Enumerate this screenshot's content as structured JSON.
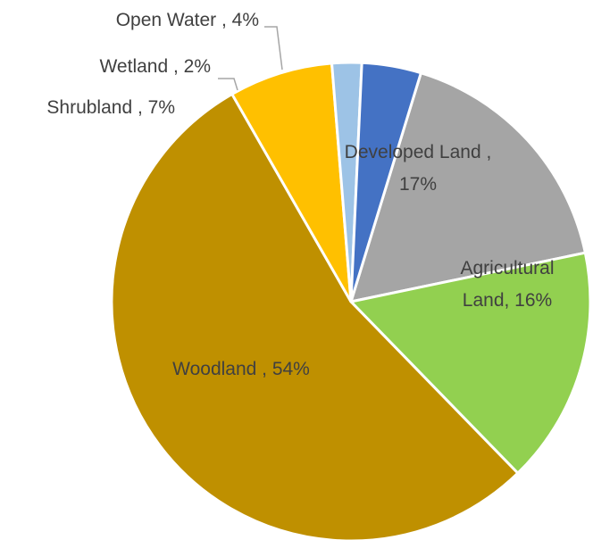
{
  "chart_data": {
    "type": "pie",
    "title": "",
    "slices": [
      {
        "label": "Developed Land",
        "value": 17,
        "pct_text": "17%",
        "color": "#a5a5a5"
      },
      {
        "label": "Agricultural Land",
        "value": 16,
        "pct_text": "16%",
        "color": "#92d050"
      },
      {
        "label": "Woodland",
        "value": 54,
        "pct_text": "54%",
        "color": "#bf9000"
      },
      {
        "label": "Shrubland",
        "value": 7,
        "pct_text": "7%",
        "color": "#ffc000"
      },
      {
        "label": "Wetland",
        "value": 2,
        "pct_text": "2%",
        "color": "#9dc3e6"
      },
      {
        "label": "Open Water",
        "value": 4,
        "pct_text": "4%",
        "color": "#4472c4"
      }
    ],
    "label_text": {
      "developed_l1": "Developed Land ,",
      "developed_l2": "17%",
      "agricultural_l1": "Agricultural",
      "agricultural_l2": "Land, 16%",
      "woodland": "Woodland , 54%",
      "shrubland": "Shrubland , 7%",
      "wetland": "Wetland , 2%",
      "open_water": "Open Water , 4%"
    },
    "legend": "none"
  }
}
